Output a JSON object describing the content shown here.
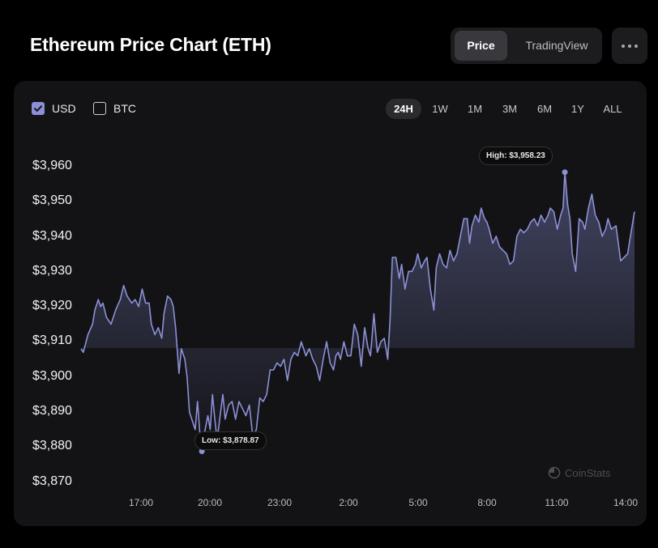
{
  "header": {
    "title": "Ethereum Price Chart (ETH)",
    "view_toggle": {
      "price_label": "Price",
      "tradingview_label": "TradingView"
    },
    "more_icon": "ellipsis-icon"
  },
  "controls": {
    "currencies": [
      {
        "label": "USD",
        "checked": true
      },
      {
        "label": "BTC",
        "checked": false
      }
    ],
    "ranges": [
      "24H",
      "1W",
      "1M",
      "3M",
      "6M",
      "1Y",
      "ALL"
    ],
    "selected_range": "24H"
  },
  "annotations": {
    "high": "High: $3,958.23",
    "low": "Low: $3,878.87"
  },
  "watermark": {
    "icon": "pie-chart-icon",
    "text": "CoinStats"
  },
  "colors": {
    "line": "#8c91d6",
    "fill_top": "#7c82c4",
    "accent": "#8c8fd8",
    "background": "#000000",
    "card": "#131315"
  },
  "chart_data": {
    "type": "area",
    "title": "Ethereum Price Chart (ETH)",
    "currency": "USD",
    "x_tick_labels": [
      "17:00",
      "20:00",
      "23:00",
      "2:00",
      "5:00",
      "8:00",
      "11:00",
      "14:00"
    ],
    "x_tick_hours": [
      3,
      6,
      9,
      12,
      15,
      18,
      21,
      24
    ],
    "y_tick_labels": [
      "$3,960",
      "$3,950",
      "$3,940",
      "$3,930",
      "$3,920",
      "$3,910",
      "$3,900",
      "$3,890",
      "$3,880",
      "$3,870"
    ],
    "y_tick_values": [
      3960,
      3950,
      3940,
      3930,
      3920,
      3910,
      3900,
      3890,
      3880,
      3870
    ],
    "ylim": [
      3870,
      3960
    ],
    "xlim": [
      0,
      24
    ],
    "high": {
      "hours": 20.98,
      "value": 3958.23
    },
    "low": {
      "hours": 5.24,
      "value": 3878.87
    },
    "series": [
      {
        "name": "ETH/USD",
        "points": [
          [
            0,
            3908
          ],
          [
            0.1,
            3907
          ],
          [
            0.3,
            3912
          ],
          [
            0.5,
            3915
          ],
          [
            0.6,
            3919
          ],
          [
            0.75,
            3922
          ],
          [
            0.85,
            3920
          ],
          [
            0.95,
            3921
          ],
          [
            1.1,
            3917
          ],
          [
            1.3,
            3915
          ],
          [
            1.5,
            3919
          ],
          [
            1.7,
            3922
          ],
          [
            1.85,
            3926
          ],
          [
            2.0,
            3923
          ],
          [
            2.2,
            3921
          ],
          [
            2.35,
            3922
          ],
          [
            2.5,
            3920
          ],
          [
            2.65,
            3925
          ],
          [
            2.8,
            3921
          ],
          [
            2.95,
            3921
          ],
          [
            3.05,
            3915
          ],
          [
            3.2,
            3912
          ],
          [
            3.35,
            3914
          ],
          [
            3.5,
            3911
          ],
          [
            3.6,
            3918
          ],
          [
            3.75,
            3923
          ],
          [
            3.9,
            3922
          ],
          [
            4.0,
            3920
          ],
          [
            4.1,
            3914
          ],
          [
            4.25,
            3901
          ],
          [
            4.35,
            3908
          ],
          [
            4.5,
            3905
          ],
          [
            4.6,
            3900
          ],
          [
            4.7,
            3890
          ],
          [
            4.8,
            3888
          ],
          [
            4.95,
            3885
          ],
          [
            5.05,
            3893
          ],
          [
            5.15,
            3884
          ],
          [
            5.24,
            3878.87
          ],
          [
            5.35,
            3884
          ],
          [
            5.5,
            3889
          ],
          [
            5.6,
            3885
          ],
          [
            5.7,
            3895
          ],
          [
            5.8,
            3888
          ],
          [
            5.9,
            3882
          ],
          [
            6.05,
            3890
          ],
          [
            6.15,
            3895
          ],
          [
            6.25,
            3888
          ],
          [
            6.4,
            3892
          ],
          [
            6.55,
            3893
          ],
          [
            6.7,
            3888
          ],
          [
            6.85,
            3893
          ],
          [
            7.0,
            3891
          ],
          [
            7.15,
            3889
          ],
          [
            7.3,
            3892
          ],
          [
            7.45,
            3883
          ],
          [
            7.6,
            3885
          ],
          [
            7.75,
            3894
          ],
          [
            7.9,
            3893
          ],
          [
            8.05,
            3895
          ],
          [
            8.2,
            3902
          ],
          [
            8.35,
            3902
          ],
          [
            8.5,
            3904
          ],
          [
            8.65,
            3903
          ],
          [
            8.8,
            3905
          ],
          [
            8.95,
            3899
          ],
          [
            9.1,
            3905
          ],
          [
            9.25,
            3907
          ],
          [
            9.4,
            3906
          ],
          [
            9.55,
            3910
          ],
          [
            9.75,
            3906
          ],
          [
            9.9,
            3908
          ],
          [
            10.05,
            3905
          ],
          [
            10.2,
            3903
          ],
          [
            10.35,
            3899
          ],
          [
            10.5,
            3905
          ],
          [
            10.65,
            3910
          ],
          [
            10.8,
            3904
          ],
          [
            10.95,
            3902
          ],
          [
            11.05,
            3906
          ],
          [
            11.15,
            3907
          ],
          [
            11.25,
            3905
          ],
          [
            11.4,
            3910
          ],
          [
            11.55,
            3906
          ],
          [
            11.7,
            3906
          ],
          [
            11.85,
            3915
          ],
          [
            12.0,
            3912
          ],
          [
            12.15,
            3903
          ],
          [
            12.3,
            3914
          ],
          [
            12.45,
            3908
          ],
          [
            12.55,
            3906
          ],
          [
            12.7,
            3918
          ],
          [
            12.85,
            3907
          ],
          [
            13.0,
            3910
          ],
          [
            13.15,
            3911
          ],
          [
            13.3,
            3905
          ],
          [
            13.4,
            3916
          ],
          [
            13.5,
            3934
          ],
          [
            13.65,
            3934
          ],
          [
            13.8,
            3928
          ],
          [
            13.9,
            3932
          ],
          [
            14.05,
            3925
          ],
          [
            14.2,
            3930
          ],
          [
            14.35,
            3930
          ],
          [
            14.5,
            3932
          ],
          [
            14.6,
            3935
          ],
          [
            14.75,
            3931
          ],
          [
            14.9,
            3933
          ],
          [
            15.0,
            3934
          ],
          [
            15.15,
            3925
          ],
          [
            15.3,
            3919
          ],
          [
            15.4,
            3931
          ],
          [
            15.55,
            3935
          ],
          [
            15.7,
            3932
          ],
          [
            15.85,
            3931
          ],
          [
            16.0,
            3936
          ],
          [
            16.15,
            3933
          ],
          [
            16.3,
            3935
          ],
          [
            16.45,
            3940
          ],
          [
            16.6,
            3945
          ],
          [
            16.75,
            3945
          ],
          [
            16.85,
            3938
          ],
          [
            16.95,
            3943
          ],
          [
            17.1,
            3946
          ],
          [
            17.25,
            3944
          ],
          [
            17.35,
            3948
          ],
          [
            17.5,
            3945
          ],
          [
            17.6,
            3944
          ],
          [
            17.7,
            3942
          ],
          [
            17.85,
            3938
          ],
          [
            18.0,
            3940
          ],
          [
            18.15,
            3937
          ],
          [
            18.3,
            3936
          ],
          [
            18.45,
            3935
          ],
          [
            18.6,
            3932
          ],
          [
            18.75,
            3933
          ],
          [
            18.9,
            3940
          ],
          [
            19.05,
            3942
          ],
          [
            19.2,
            3941
          ],
          [
            19.35,
            3942
          ],
          [
            19.5,
            3944
          ],
          [
            19.65,
            3945
          ],
          [
            19.8,
            3943
          ],
          [
            19.95,
            3946
          ],
          [
            20.1,
            3944
          ],
          [
            20.25,
            3946
          ],
          [
            20.35,
            3948
          ],
          [
            20.5,
            3947
          ],
          [
            20.65,
            3942
          ],
          [
            20.8,
            3946
          ],
          [
            20.9,
            3948
          ],
          [
            20.98,
            3958.23
          ],
          [
            21.1,
            3949
          ],
          [
            21.2,
            3945
          ],
          [
            21.3,
            3935
          ],
          [
            21.45,
            3930
          ],
          [
            21.6,
            3945
          ],
          [
            21.75,
            3944
          ],
          [
            21.85,
            3942
          ],
          [
            22.0,
            3948
          ],
          [
            22.15,
            3952
          ],
          [
            22.3,
            3946
          ],
          [
            22.45,
            3944
          ],
          [
            22.6,
            3940
          ],
          [
            22.75,
            3942
          ],
          [
            22.85,
            3945
          ],
          [
            23.0,
            3942
          ],
          [
            23.2,
            3943
          ],
          [
            23.4,
            3933
          ],
          [
            23.55,
            3934
          ],
          [
            23.7,
            3935
          ],
          [
            23.85,
            3941
          ],
          [
            24.0,
            3947
          ]
        ]
      }
    ]
  }
}
